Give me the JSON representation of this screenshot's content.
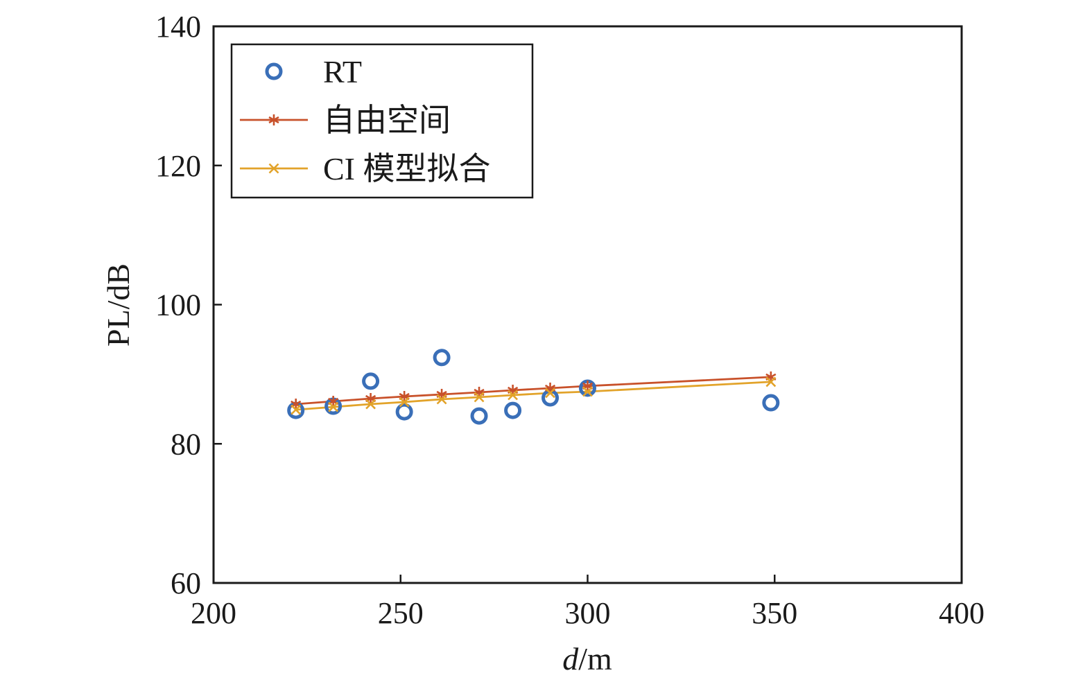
{
  "chart_data": {
    "type": "line",
    "xlabel_italic": "d",
    "xlabel_rest": "/m",
    "ylabel": "PL/dB",
    "xlim": [
      200,
      400
    ],
    "ylim": [
      60,
      140
    ],
    "xticks": [
      200,
      250,
      300,
      350,
      400
    ],
    "yticks": [
      60,
      80,
      100,
      120,
      140
    ],
    "grid": false,
    "legend_position": "top-left",
    "series": [
      {
        "name": "RT",
        "style": "scatter",
        "marker": "circle",
        "color": "#3a6fb8",
        "x": [
          222,
          232,
          242,
          251,
          261,
          271,
          280,
          290,
          300,
          349
        ],
        "y": [
          84.8,
          85.4,
          89.0,
          84.6,
          92.4,
          84.0,
          84.8,
          86.6,
          88.0,
          85.9
        ]
      },
      {
        "name": "自由空间",
        "style": "line",
        "marker": "asterisk",
        "color": "#c8512a",
        "x": [
          222,
          232,
          242,
          251,
          261,
          271,
          280,
          290,
          300,
          349
        ],
        "y": [
          85.7,
          86.1,
          86.5,
          86.8,
          87.1,
          87.4,
          87.7,
          88.0,
          88.3,
          89.6
        ]
      },
      {
        "name": "CI 模型拟合",
        "style": "line",
        "marker": "x",
        "color": "#e2a32a",
        "x": [
          222,
          232,
          242,
          251,
          261,
          271,
          280,
          290,
          300,
          349
        ],
        "y": [
          84.9,
          85.3,
          85.7,
          86.0,
          86.4,
          86.7,
          87.0,
          87.3,
          87.5,
          88.9
        ]
      }
    ]
  }
}
